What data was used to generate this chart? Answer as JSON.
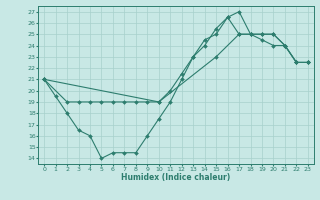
{
  "line1_x": [
    0,
    1,
    2,
    3,
    4,
    5,
    6,
    7,
    8,
    9,
    10,
    11,
    12,
    13,
    14,
    15,
    16,
    17,
    18,
    19,
    20,
    21,
    22,
    23
  ],
  "line1_y": [
    21,
    19.5,
    18,
    16.5,
    16,
    14,
    14.5,
    14.5,
    14.5,
    16,
    17.5,
    19,
    21,
    23,
    24.5,
    25,
    26.5,
    25,
    25,
    24.5,
    24,
    24,
    22.5,
    22.5
  ],
  "line2_x": [
    0,
    2,
    3,
    4,
    5,
    6,
    7,
    8,
    9,
    10,
    11,
    12,
    13,
    14,
    15,
    16,
    17,
    18,
    19,
    20,
    21,
    22,
    23
  ],
  "line2_y": [
    21,
    19,
    19,
    19,
    19,
    19,
    19,
    19,
    19,
    19,
    20,
    21.5,
    23,
    24,
    25.5,
    26.5,
    27,
    25,
    25,
    25,
    24,
    22.5,
    22.5
  ],
  "line3_x": [
    0,
    10,
    15,
    17,
    18,
    19,
    20,
    21,
    22,
    23
  ],
  "line3_y": [
    21,
    19,
    23,
    25,
    25,
    25,
    25,
    24,
    22.5,
    22.5
  ],
  "color": "#2d7d6e",
  "bg_color": "#c8e8e5",
  "grid_color": "#a8d0cc",
  "xlabel": "Humidex (Indice chaleur)",
  "xlim": [
    -0.5,
    23.5
  ],
  "ylim": [
    13.5,
    27.5
  ],
  "yticks": [
    14,
    15,
    16,
    17,
    18,
    19,
    20,
    21,
    22,
    23,
    24,
    25,
    26,
    27
  ],
  "xticks": [
    0,
    1,
    2,
    3,
    4,
    5,
    6,
    7,
    8,
    9,
    10,
    11,
    12,
    13,
    14,
    15,
    16,
    17,
    18,
    19,
    20,
    21,
    22,
    23
  ]
}
